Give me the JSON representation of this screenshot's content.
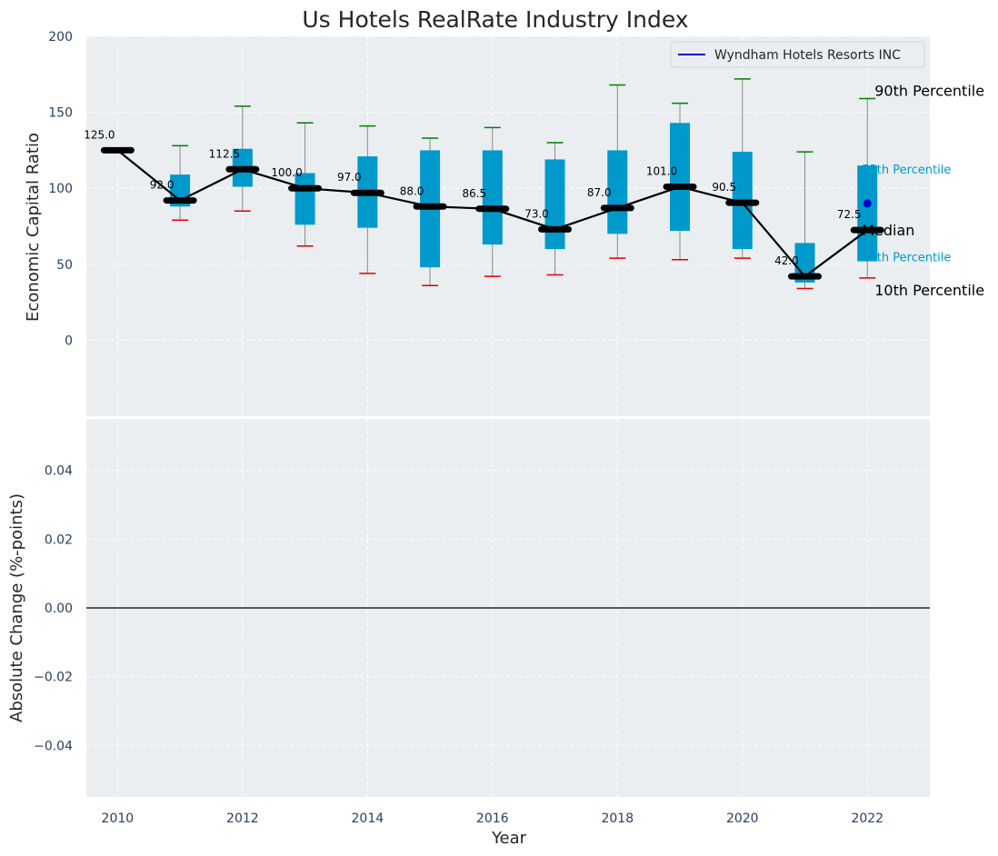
{
  "chart_data": {
    "type": "box",
    "title": "Us Hotels RealRate Industry Index",
    "xlabel": "Year",
    "x_ticks": [
      "2010",
      "2012",
      "2014",
      "2016",
      "2018",
      "2020",
      "2022"
    ],
    "xlim": [
      2009.5,
      2023
    ],
    "top_panel": {
      "ylabel": "Economic Capital Ratio",
      "ylim": [
        -50,
        200
      ],
      "y_ticks": [
        "0",
        "50",
        "100",
        "150",
        "200"
      ],
      "grid": true,
      "years": [
        2010,
        2011,
        2012,
        2013,
        2014,
        2015,
        2016,
        2017,
        2018,
        2019,
        2020,
        2021,
        2022
      ],
      "median": [
        125.0,
        92.0,
        112.5,
        100.0,
        97.0,
        88.0,
        86.5,
        73.0,
        87.0,
        101.0,
        90.5,
        42.0,
        72.5
      ],
      "median_labels": [
        "125.0",
        "92.0",
        "112.5",
        "100.0",
        "97.0",
        "88.0",
        "86.5",
        "73.0",
        "87.0",
        "101.0",
        "90.5",
        "42.0",
        "72.5"
      ],
      "q25": [
        125,
        88,
        101,
        76,
        74,
        48,
        63,
        60,
        70,
        72,
        60,
        38,
        52
      ],
      "q75": [
        125,
        109,
        126,
        110,
        121,
        125,
        125,
        119,
        125,
        143,
        124,
        64,
        115
      ],
      "p10": [
        125,
        79,
        85,
        62,
        44,
        36,
        42,
        43,
        54,
        53,
        54,
        34,
        41
      ],
      "p90": [
        125,
        128,
        154,
        143,
        141,
        133,
        140,
        130,
        168,
        156,
        172,
        124,
        159
      ],
      "company": {
        "name": "Wyndham Hotels Resorts INC",
        "year": 2022,
        "value": 90,
        "color": "#0000cc"
      },
      "annotations": {
        "p90": "90th Percentile",
        "p75": "75th Percentile",
        "median": "Median",
        "p25": "25th Percentile",
        "p10": "10th Percentile"
      },
      "legend": {
        "position": "top-right",
        "entries": [
          "Wyndham Hotels Resorts INC"
        ]
      }
    },
    "bottom_panel": {
      "ylabel": "Absolute Change (%-points)",
      "ylim": [
        -0.055,
        0.055
      ],
      "y_ticks": [
        "0.04",
        "0.02",
        "0.00",
        "−0.02",
        "−0.04"
      ],
      "y_tick_values": [
        0.04,
        0.02,
        0.0,
        -0.02,
        -0.04
      ],
      "grid": true,
      "zero_line": true
    },
    "colors": {
      "box": "#0099cc",
      "median": "#000000",
      "p90_cap": "#008000",
      "p10_cap": "#e00000",
      "whisker": "#888888",
      "background": "#eaeef0",
      "grid": "#ffffff"
    }
  }
}
